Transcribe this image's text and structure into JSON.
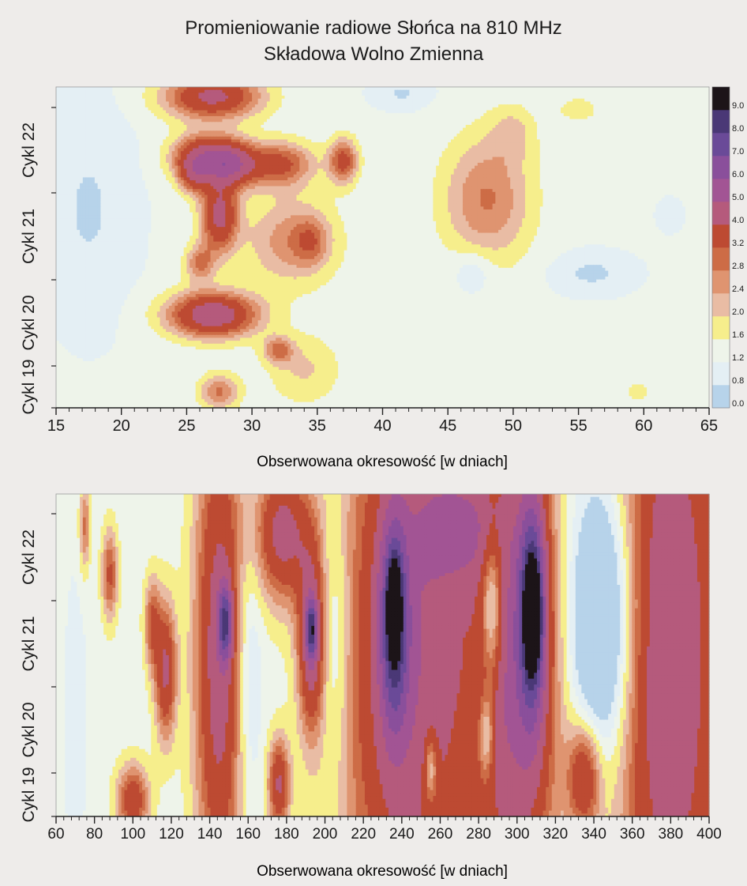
{
  "title": "Promieniowanie radiowe Słońca na 810 MHz",
  "subtitle": "Składowa Wolno Zmienna",
  "palette": {
    "levels": [
      0.0,
      0.8,
      1.2,
      1.6,
      2.0,
      2.4,
      2.8,
      3.2,
      4.0,
      5.0,
      6.0,
      7.0,
      8.0,
      9.0
    ],
    "colors": [
      "#b7d3ea",
      "#e4eff4",
      "#eef4ea",
      "#f6ee8c",
      "#e9bca4",
      "#df9470",
      "#cd6c46",
      "#bd4a32",
      "#b55a7c",
      "#a25494",
      "#8a4f9b",
      "#6a4a98",
      "#4a3876",
      "#1c1418"
    ]
  },
  "chart_data": [
    {
      "type": "heatmap",
      "xlabel": "Obserwowana okresowość  [w dniach]",
      "ylabel": "",
      "xlim": [
        15,
        65
      ],
      "x_ticks": [
        "15",
        "20",
        "25",
        "30",
        "35",
        "40",
        "45",
        "50",
        "55",
        "60",
        "65"
      ],
      "y_labels": [
        "Cykl 19",
        "Cykl 20",
        "Cykl 21",
        "Cykl 22"
      ],
      "colorbar": [
        "0.0",
        "0.8",
        "1.2",
        "1.6",
        "2.0",
        "2.4",
        "2.8",
        "3.2",
        "4.0",
        "5.0",
        "6.0",
        "7.0",
        "8.0",
        "9.0"
      ],
      "blobs": [
        {
          "x": 27.0,
          "y": 0.97,
          "sx": 2.6,
          "sy": 0.05,
          "a": 3.0
        },
        {
          "x": 26.2,
          "y": 0.78,
          "sx": 1.6,
          "sy": 0.05,
          "a": 3.1
        },
        {
          "x": 28.5,
          "y": 0.76,
          "sx": 1.3,
          "sy": 0.05,
          "a": 2.8
        },
        {
          "x": 27.5,
          "y": 0.6,
          "sx": 1.0,
          "sy": 0.08,
          "a": 3.0
        },
        {
          "x": 25.5,
          "y": 0.72,
          "sx": 0.8,
          "sy": 0.04,
          "a": 1.6
        },
        {
          "x": 27.0,
          "y": 0.29,
          "sx": 2.4,
          "sy": 0.05,
          "a": 3.5
        },
        {
          "x": 26.0,
          "y": 0.45,
          "sx": 0.8,
          "sy": 0.04,
          "a": 1.6
        },
        {
          "x": 27.5,
          "y": 0.05,
          "sx": 1.1,
          "sy": 0.04,
          "a": 1.6
        },
        {
          "x": 32.0,
          "y": 0.76,
          "sx": 1.9,
          "sy": 0.05,
          "a": 2.2
        },
        {
          "x": 33.0,
          "y": 0.52,
          "sx": 2.5,
          "sy": 0.1,
          "a": 1.4
        },
        {
          "x": 34.5,
          "y": 0.52,
          "sx": 0.9,
          "sy": 0.05,
          "a": 1.0
        },
        {
          "x": 37.0,
          "y": 0.77,
          "sx": 0.8,
          "sy": 0.05,
          "a": 2.2
        },
        {
          "x": 32.0,
          "y": 0.18,
          "sx": 0.8,
          "sy": 0.03,
          "a": 1.5
        },
        {
          "x": 34.0,
          "y": 0.12,
          "sx": 2.0,
          "sy": 0.08,
          "a": 0.8
        },
        {
          "x": 48.0,
          "y": 0.65,
          "sx": 2.4,
          "sy": 0.14,
          "a": 1.6
        },
        {
          "x": 50.0,
          "y": 0.86,
          "sx": 1.2,
          "sy": 0.06,
          "a": 0.7
        },
        {
          "x": 55.0,
          "y": 0.93,
          "sx": 1.2,
          "sy": 0.03,
          "a": 0.6
        },
        {
          "x": 59.5,
          "y": 0.05,
          "sx": 0.8,
          "sy": 0.03,
          "a": 0.5
        }
      ],
      "dips": [
        {
          "x": 17.5,
          "y": 0.62,
          "sx": 2.2,
          "sy": 0.22,
          "a": 0.5
        },
        {
          "x": 47.0,
          "y": 0.43,
          "sx": 1.1,
          "sy": 0.05,
          "a": 0.6
        },
        {
          "x": 56.0,
          "y": 0.42,
          "sx": 2.0,
          "sy": 0.04,
          "a": 0.55
        },
        {
          "x": 41.5,
          "y": 0.98,
          "sx": 1.4,
          "sy": 0.03,
          "a": 0.5
        },
        {
          "x": 62.0,
          "y": 0.6,
          "sx": 0.6,
          "sy": 0.03,
          "a": 0.4
        }
      ]
    },
    {
      "type": "heatmap",
      "xlabel": "Obserwowana okresowość  [w dniach]",
      "ylabel": "",
      "xlim": [
        60,
        400
      ],
      "x_ticks": [
        "60",
        "80",
        "100",
        "120",
        "140",
        "160",
        "180",
        "200",
        "220",
        "240",
        "260",
        "280",
        "300",
        "320",
        "340",
        "360",
        "380",
        "400"
      ],
      "y_labels": [
        "Cykl 19",
        "Cykl 20",
        "Cykl 21",
        "Cykl 22"
      ],
      "blobs": [
        {
          "x": 145,
          "y": 0.5,
          "sx": 9,
          "sy": 0.55,
          "a": 3.2
        },
        {
          "x": 148,
          "y": 0.6,
          "sx": 2.5,
          "sy": 0.08,
          "a": 4.6
        },
        {
          "x": 117,
          "y": 0.45,
          "sx": 4,
          "sy": 0.15,
          "a": 2.8
        },
        {
          "x": 193,
          "y": 0.55,
          "sx": 5,
          "sy": 0.2,
          "a": 3.2
        },
        {
          "x": 193,
          "y": 0.58,
          "sx": 2,
          "sy": 0.06,
          "a": 4.5
        },
        {
          "x": 178,
          "y": 0.88,
          "sx": 10,
          "sy": 0.15,
          "a": 3.0
        },
        {
          "x": 176,
          "y": 0.1,
          "sx": 4,
          "sy": 0.1,
          "a": 2.7
        },
        {
          "x": 88,
          "y": 0.75,
          "sx": 3,
          "sy": 0.1,
          "a": 2.0
        },
        {
          "x": 110,
          "y": 0.6,
          "sx": 3,
          "sy": 0.1,
          "a": 1.8
        },
        {
          "x": 100,
          "y": 0.05,
          "sx": 6,
          "sy": 0.08,
          "a": 2.4
        },
        {
          "x": 75,
          "y": 0.9,
          "sx": 2,
          "sy": 0.1,
          "a": 1.6
        },
        {
          "x": 245,
          "y": 0.5,
          "sx": 25,
          "sy": 0.7,
          "a": 3.6
        },
        {
          "x": 236,
          "y": 0.6,
          "sx": 5,
          "sy": 0.22,
          "a": 5.0
        },
        {
          "x": 236,
          "y": 0.65,
          "sx": 2,
          "sy": 0.08,
          "a": 7.2
        },
        {
          "x": 300,
          "y": 0.45,
          "sx": 15,
          "sy": 0.55,
          "a": 3.6
        },
        {
          "x": 308,
          "y": 0.65,
          "sx": 5,
          "sy": 0.25,
          "a": 5.0
        },
        {
          "x": 308,
          "y": 0.62,
          "sx": 2.5,
          "sy": 0.1,
          "a": 7.5
        },
        {
          "x": 270,
          "y": 0.9,
          "sx": 14,
          "sy": 0.12,
          "a": 2.2
        },
        {
          "x": 335,
          "y": 0.12,
          "sx": 6,
          "sy": 0.12,
          "a": 2.6
        },
        {
          "x": 380,
          "y": 0.5,
          "sx": 20,
          "sy": 0.8,
          "a": 3.6
        }
      ],
      "dips": [
        {
          "x": 287,
          "y": 0.65,
          "sx": 4,
          "sy": 0.18,
          "a": 2.6
        },
        {
          "x": 284,
          "y": 0.25,
          "sx": 3,
          "sy": 0.1,
          "a": 2.0
        },
        {
          "x": 345,
          "y": 0.6,
          "sx": 12,
          "sy": 0.3,
          "a": 2.6
        },
        {
          "x": 255,
          "y": 0.15,
          "sx": 2.5,
          "sy": 0.08,
          "a": 2.0
        },
        {
          "x": 205,
          "y": 0.55,
          "sx": 6,
          "sy": 0.3,
          "a": 1.0
        },
        {
          "x": 160,
          "y": 0.45,
          "sx": 5,
          "sy": 0.3,
          "a": 1.0
        },
        {
          "x": 70,
          "y": 0.3,
          "sx": 5,
          "sy": 0.4,
          "a": 0.3
        }
      ]
    }
  ]
}
